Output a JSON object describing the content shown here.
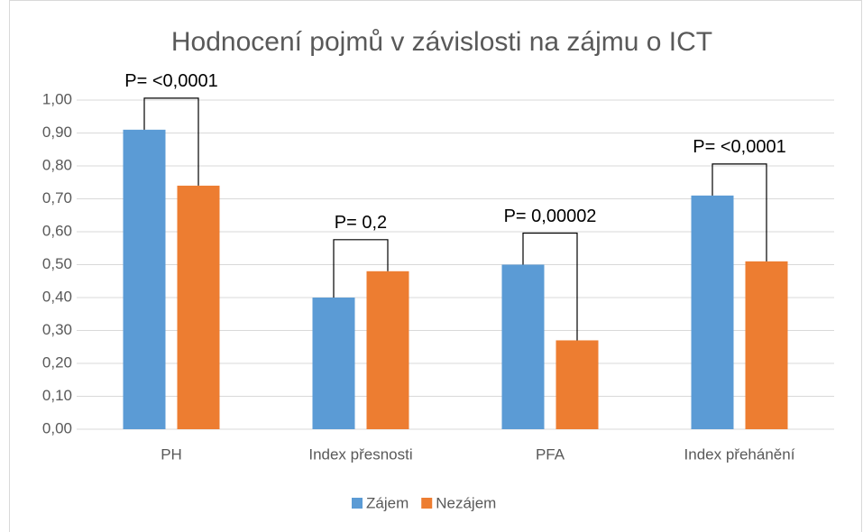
{
  "chart_data": {
    "type": "bar",
    "title": "Hodnocení pojmů v závislosti na zájmu o ICT",
    "categories": [
      "PH",
      "Index přesnosti",
      "PFA",
      "Index přehánění"
    ],
    "series": [
      {
        "name": "Zájem",
        "color": "#5b9bd5",
        "values": [
          0.91,
          0.4,
          0.5,
          0.71
        ]
      },
      {
        "name": "Nezájem",
        "color": "#ed7d31",
        "values": [
          0.74,
          0.48,
          0.27,
          0.51
        ]
      }
    ],
    "annotations": [
      "P= <0,0001",
      "P= 0,2",
      "P= 0,00002",
      "P= <0,0001"
    ],
    "ylim": [
      0,
      1
    ],
    "yticks": [
      {
        "value": 0,
        "label": "0,00"
      },
      {
        "value": 0.1,
        "label": "0,10"
      },
      {
        "value": 0.2,
        "label": "0,20"
      },
      {
        "value": 0.3,
        "label": "0,30"
      },
      {
        "value": 0.4,
        "label": "0,40"
      },
      {
        "value": 0.5,
        "label": "0,50"
      },
      {
        "value": 0.6,
        "label": "0,60"
      },
      {
        "value": 0.7,
        "label": "0,70"
      },
      {
        "value": 0.8,
        "label": "0,80"
      },
      {
        "value": 0.9,
        "label": "0,90"
      },
      {
        "value": 1,
        "label": "1,00"
      }
    ],
    "grid": true,
    "legend": "bottom"
  }
}
